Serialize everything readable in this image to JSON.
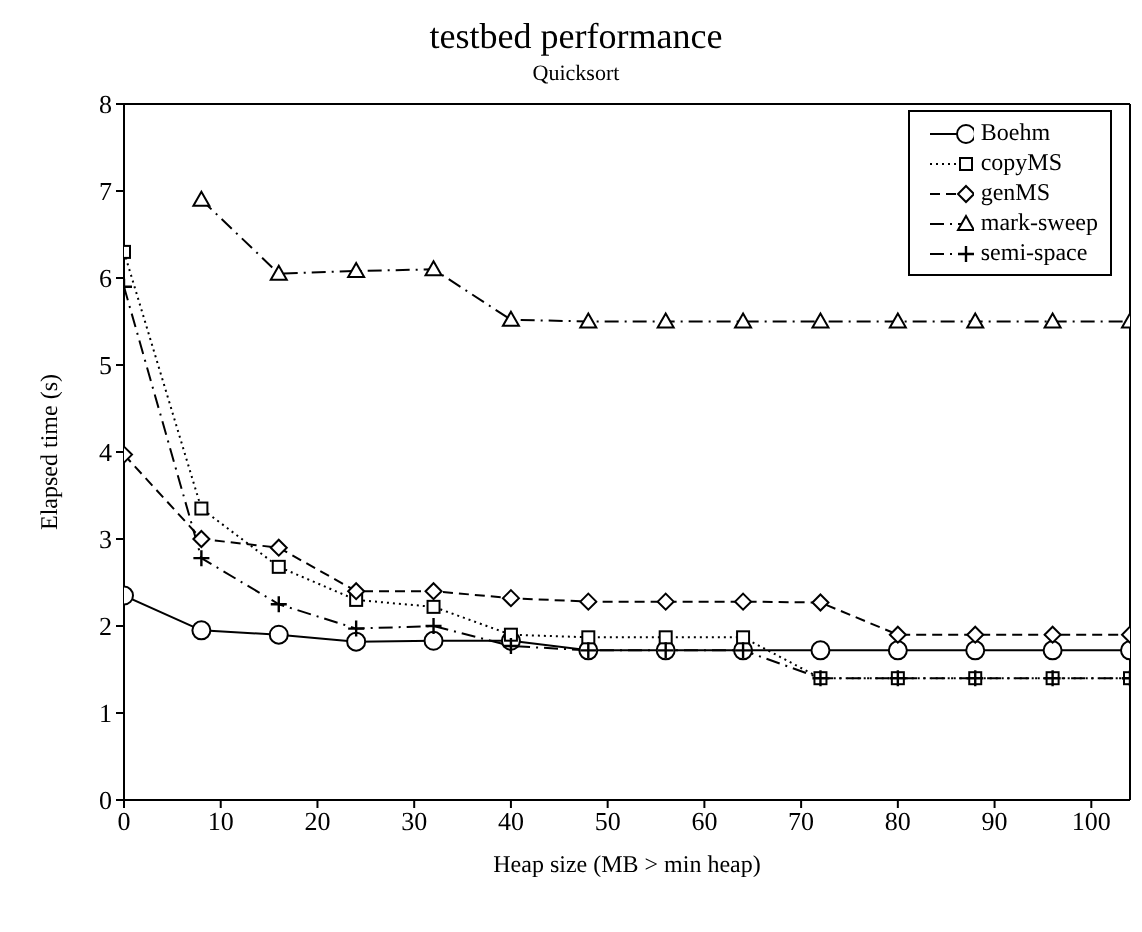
{
  "chart_data": {
    "type": "line",
    "title": "testbed performance",
    "subtitle": "Quicksort",
    "xlabel": "Heap size (MB > min heap)",
    "ylabel": "Elapsed time (s)",
    "x": [
      0,
      8,
      16,
      24,
      32,
      40,
      48,
      56,
      64,
      72,
      80,
      88,
      96,
      104
    ],
    "series": [
      {
        "name": "Boehm",
        "color": "#000000",
        "marker": "circle",
        "line_style": "solid",
        "values": [
          2.35,
          1.95,
          1.9,
          1.82,
          1.83,
          1.83,
          1.72,
          1.72,
          1.72,
          1.72,
          1.72,
          1.72,
          1.72,
          1.72
        ]
      },
      {
        "name": "copyMS",
        "color": "#000000",
        "marker": "square",
        "line_style": "dotted",
        "values": [
          6.3,
          3.35,
          2.68,
          2.3,
          2.22,
          1.9,
          1.87,
          1.87,
          1.87,
          1.4,
          1.4,
          1.4,
          1.4,
          1.4
        ]
      },
      {
        "name": "genMS",
        "color": "#000000",
        "marker": "diamond",
        "line_style": "dashed",
        "values": [
          3.97,
          3.0,
          2.9,
          2.4,
          2.4,
          2.32,
          2.28,
          2.28,
          2.28,
          2.27,
          1.9,
          1.9,
          1.9,
          1.9
        ]
      },
      {
        "name": "mark-sweep",
        "color": "#000000",
        "marker": "triangle",
        "line_style": "dashdot",
        "values": [
          null,
          6.9,
          6.05,
          6.08,
          6.1,
          5.52,
          5.5,
          5.5,
          5.5,
          5.5,
          5.5,
          5.5,
          5.5,
          5.5
        ]
      },
      {
        "name": "semi-space",
        "color": "#000000",
        "marker": "cross",
        "line_style": "dashdot",
        "values": [
          5.9,
          2.78,
          2.25,
          1.97,
          2.0,
          1.77,
          1.72,
          1.72,
          1.72,
          1.4,
          1.4,
          1.4,
          1.4,
          1.4
        ]
      }
    ],
    "xlim": [
      0,
      104
    ],
    "xticks": [
      0,
      10,
      20,
      30,
      40,
      50,
      60,
      70,
      80,
      90,
      100
    ],
    "ylim": [
      0,
      8
    ],
    "yticks": [
      0,
      1,
      2,
      3,
      4,
      5,
      6,
      7,
      8
    ],
    "grid": false,
    "legend": "top right"
  }
}
